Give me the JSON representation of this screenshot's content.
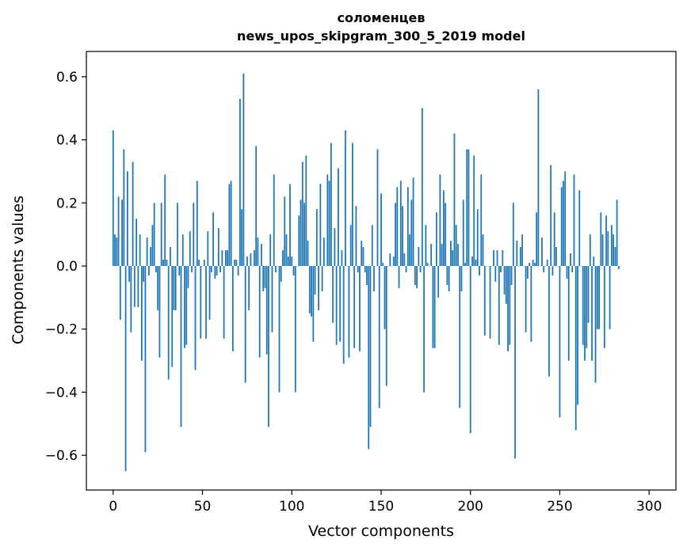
{
  "chart_data": {
    "type": "bar",
    "title": "соломенцев",
    "subtitle": "news_upos_skipgram_300_5_2019 model",
    "xlabel": "Vector components",
    "ylabel": "Components values",
    "xlim": [
      -15,
      315
    ],
    "ylim": [
      -0.71,
      0.68
    ],
    "x_ticks": [
      0,
      50,
      100,
      150,
      200,
      250,
      300
    ],
    "x_tick_labels": [
      "0",
      "50",
      "100",
      "150",
      "200",
      "250",
      "300"
    ],
    "y_ticks": [
      -0.6,
      -0.4,
      -0.2,
      0.0,
      0.2,
      0.4,
      0.6
    ],
    "y_tick_labels": [
      "−0.6",
      "−0.4",
      "−0.2",
      "0.0",
      "0.2",
      "0.4",
      "0.6"
    ],
    "grid": false,
    "legend": "none",
    "bar_color": "#1f77b4",
    "values": [
      0.43,
      0.1,
      0.09,
      0.22,
      -0.17,
      0.21,
      0.37,
      -0.65,
      0.3,
      -0.05,
      -0.21,
      0.33,
      -0.13,
      0.15,
      -0.13,
      0.1,
      -0.3,
      -0.05,
      -0.59,
      0.09,
      -0.03,
      0.06,
      0.13,
      0.2,
      -0.02,
      -0.14,
      -0.29,
      0.2,
      0.02,
      0.29,
      0.02,
      -0.36,
      0.06,
      -0.32,
      -0.14,
      -0.14,
      0.2,
      -0.03,
      -0.51,
      0.1,
      -0.26,
      -0.25,
      -0.07,
      0.11,
      -0.02,
      0.2,
      -0.33,
      0.27,
      0.02,
      -0.23,
      0.0,
      0.02,
      -0.23,
      0.11,
      -0.17,
      -0.02,
      0.17,
      -0.04,
      -0.03,
      0.12,
      -0.02,
      0.05,
      -0.23,
      0.05,
      0.05,
      0.26,
      0.27,
      -0.27,
      0.02,
      0.02,
      -0.03,
      0.53,
      0.18,
      0.61,
      -0.37,
      0.03,
      -0.14,
      0.04,
      0.0,
      0.05,
      0.38,
      0.09,
      -0.29,
      0.07,
      -0.08,
      -0.07,
      -0.28,
      -0.51,
      0.1,
      -0.21,
      0.29,
      -0.02,
      0.0,
      -0.4,
      -0.05,
      0.05,
      0.22,
      0.1,
      0.03,
      0.26,
      0.03,
      -0.03,
      -0.4,
      0.0,
      0.16,
      0.21,
      0.33,
      0.2,
      0.35,
      0.08,
      -0.15,
      -0.16,
      -0.24,
      -0.09,
      0.18,
      -0.14,
      0.26,
      -0.08,
      0.09,
      0.0,
      0.29,
      0.27,
      0.39,
      -0.18,
      0.12,
      -0.25,
      0.31,
      -0.24,
      0.05,
      -0.31,
      0.43,
      0.0,
      -0.29,
      0.13,
      0.39,
      -0.26,
      0.19,
      -0.02,
      -0.27,
      0.08,
      0.06,
      -0.02,
      -0.06,
      -0.58,
      -0.51,
      0.13,
      -0.08,
      0.0,
      0.37,
      -0.45,
      0.23,
      0.01,
      -0.2,
      -0.38,
      0.0,
      0.04,
      0.0,
      0.03,
      0.2,
      0.25,
      -0.07,
      0.27,
      0.19,
      0.04,
      -0.02,
      0.25,
      0.1,
      0.21,
      0.28,
      -0.06,
      -0.07,
      0.06,
      -0.02,
      0.5,
      -0.4,
      0.13,
      0.01,
      0.0,
      0.07,
      -0.26,
      -0.26,
      0.17,
      -0.1,
      0.29,
      0.07,
      0.24,
      0.2,
      -0.06,
      -0.08,
      0.08,
      0.05,
      0.42,
      0.13,
      0.07,
      -0.45,
      -0.08,
      0.21,
      0.01,
      0.37,
      0.37,
      -0.53,
      0.03,
      0.35,
      0.02,
      0.18,
      -0.03,
      0.29,
      0.1,
      -0.22,
      0.0,
      0.0,
      -0.23,
      0.0,
      0.05,
      -0.05,
      0.05,
      -0.25,
      -0.02,
      0.05,
      -0.09,
      -0.12,
      -0.27,
      -0.25,
      -0.06,
      0.2,
      -0.61,
      0.08,
      0.0,
      0.06,
      0.1,
      0.0,
      -0.21,
      -0.04,
      0.01,
      -0.24,
      0.02,
      0.01,
      0.17,
      0.56,
      0.0,
      0.09,
      -0.02,
      0.0,
      0.02,
      -0.35,
      0.32,
      -0.03,
      0.17,
      0.06,
      0.0,
      -0.48,
      0.25,
      0.27,
      0.3,
      -0.04,
      -0.3,
      0.04,
      -0.02,
      0.29,
      -0.52,
      -0.44,
      0.24,
      0.0,
      -0.25,
      -0.3,
      -0.26,
      -0.18,
      0.1,
      -0.3,
      0.03,
      -0.37,
      -0.2,
      -0.2,
      0.17,
      0.1,
      -0.26,
      0.16,
      0.11,
      -0.2,
      0.13,
      0.1,
      0.06,
      0.21,
      -0.01
    ]
  }
}
